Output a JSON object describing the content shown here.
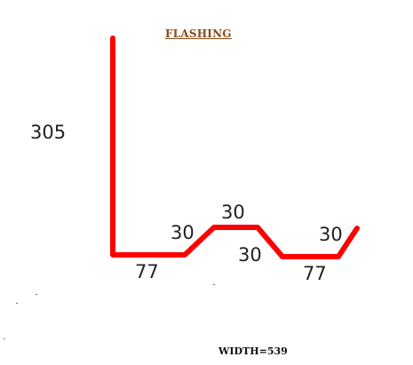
{
  "title": "FLASHING",
  "colors": {
    "profile_line": "#ff0000",
    "title_text": "#8a4b1a",
    "dimension_text": "#222222"
  },
  "dimensions": {
    "vertical_leg": "305",
    "bottom_left": "77",
    "slope_left_up": "30",
    "top_flat": "30",
    "slope_down": "30",
    "bottom_right": "77",
    "end_return": "30"
  },
  "total_width": "WIDTH=539"
}
